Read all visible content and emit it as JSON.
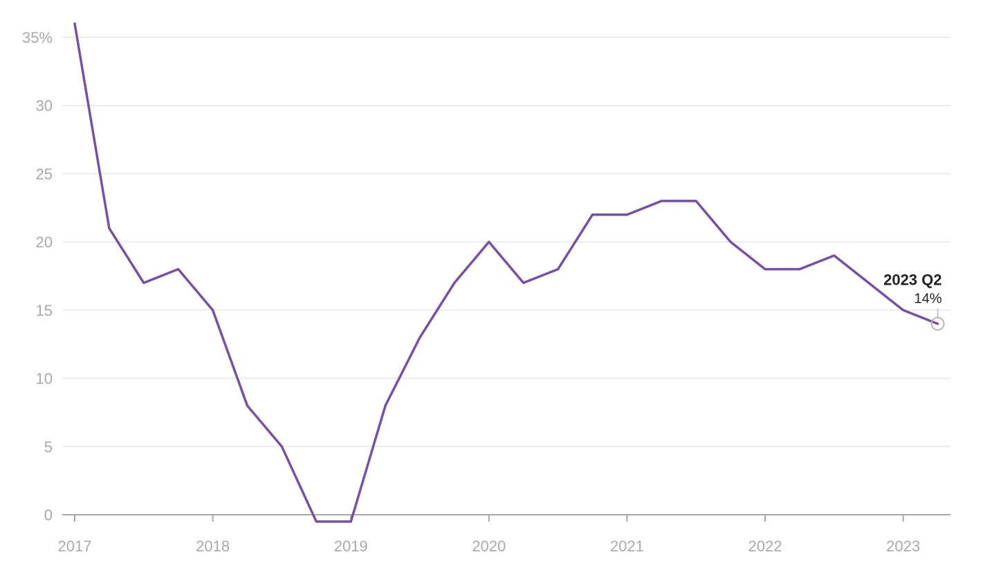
{
  "chart_data": {
    "type": "line",
    "title": "",
    "xlabel": "",
    "ylabel": "",
    "ylim": [
      0,
      35
    ],
    "y_ticks": [
      0,
      5,
      10,
      15,
      20,
      25,
      30,
      35
    ],
    "y_tick_labels": [
      "0",
      "5",
      "10",
      "15",
      "20",
      "25",
      "30",
      "35%"
    ],
    "x_ticks": [
      2017,
      2018,
      2019,
      2020,
      2021,
      2022,
      2023
    ],
    "x_tick_labels": [
      "2017",
      "2018",
      "2019",
      "2020",
      "2021",
      "2022",
      "2023"
    ],
    "grid": true,
    "line_color": "#7650a4",
    "series": [
      {
        "x": [
          "2017 Q1",
          "2017 Q2",
          "2017 Q3",
          "2017 Q4",
          "2018 Q1",
          "2018 Q2",
          "2018 Q3",
          "2018 Q4",
          "2019 Q1",
          "2019 Q2",
          "2019 Q3",
          "2019 Q4",
          "2020 Q1",
          "2020 Q2",
          "2020 Q3",
          "2020 Q4",
          "2021 Q1",
          "2021 Q2",
          "2021 Q3",
          "2021 Q4",
          "2022 Q1",
          "2022 Q2",
          "2022 Q3",
          "2022 Q4",
          "2023 Q1",
          "2023 Q2"
        ],
        "values": [
          36,
          21,
          17,
          18,
          15,
          8,
          5,
          -0.5,
          -0.5,
          8,
          13,
          17,
          20,
          17,
          18,
          22,
          22,
          23,
          23,
          20,
          18,
          18,
          19,
          17,
          15,
          14
        ]
      }
    ],
    "annotation": {
      "label": "2023 Q2",
      "value": "14%"
    }
  }
}
